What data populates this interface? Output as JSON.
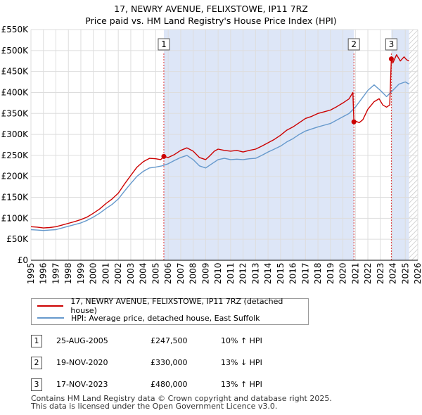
{
  "title_line1": "17, NEWRY AVENUE, FELIXSTOWE, IP11 7RZ",
  "title_line2": "Price paid vs. HM Land Registry's House Price Index (HPI)",
  "colors": {
    "property": "#cc0000",
    "hpi": "#6699cc",
    "shade": "#dde6f7",
    "marker_line": "#dd3333"
  },
  "chart_data": {
    "type": "line",
    "title": "Price paid vs. HM Land Registry's House Price Index (HPI)",
    "xlim": [
      1995,
      2026
    ],
    "ylim": [
      0,
      550000
    ],
    "x_ticks": [
      "1995",
      "1996",
      "1997",
      "1998",
      "1999",
      "2000",
      "2001",
      "2002",
      "2003",
      "2004",
      "2005",
      "2006",
      "2007",
      "2008",
      "2009",
      "2010",
      "2011",
      "2012",
      "2013",
      "2014",
      "2015",
      "2016",
      "2017",
      "2018",
      "2019",
      "2020",
      "2021",
      "2022",
      "2023",
      "2024",
      "2025",
      "2026"
    ],
    "y_ticks": [
      {
        "value": 0,
        "label": "£0"
      },
      {
        "value": 50000,
        "label": "£50K"
      },
      {
        "value": 100000,
        "label": "£100K"
      },
      {
        "value": 150000,
        "label": "£150K"
      },
      {
        "value": 200000,
        "label": "£200K"
      },
      {
        "value": 250000,
        "label": "£250K"
      },
      {
        "value": 300000,
        "label": "£300K"
      },
      {
        "value": 350000,
        "label": "£350K"
      },
      {
        "value": 400000,
        "label": "£400K"
      },
      {
        "value": 450000,
        "label": "£450K"
      },
      {
        "value": 500000,
        "label": "£500K"
      },
      {
        "value": 550000,
        "label": "£550K"
      }
    ],
    "series": [
      {
        "name": "17, NEWRY AVENUE, FELIXSTOWE, IP11 7RZ (detached house)",
        "color": "#cc0000",
        "x": [
          1995.0,
          1995.5,
          1996.0,
          1996.5,
          1997.0,
          1997.5,
          1998.0,
          1998.5,
          1999.0,
          1999.5,
          2000.0,
          2000.5,
          2001.0,
          2001.5,
          2002.0,
          2002.5,
          2003.0,
          2003.5,
          2004.0,
          2004.5,
          2005.0,
          2005.4,
          2005.65,
          2006.0,
          2006.5,
          2007.0,
          2007.5,
          2008.0,
          2008.5,
          2009.0,
          2009.3,
          2009.7,
          2010.0,
          2010.5,
          2011.0,
          2011.5,
          2012.0,
          2012.5,
          2013.0,
          2013.5,
          2014.0,
          2014.5,
          2015.0,
          2015.5,
          2016.0,
          2016.5,
          2017.0,
          2017.5,
          2018.0,
          2018.5,
          2019.0,
          2019.5,
          2020.0,
          2020.5,
          2020.8,
          2020.88,
          2021.0,
          2021.3,
          2021.6,
          2022.0,
          2022.5,
          2022.9,
          2023.2,
          2023.5,
          2023.75,
          2023.88,
          2024.0,
          2024.3,
          2024.6,
          2024.9,
          2025.1,
          2025.3
        ],
        "y": [
          80000,
          79000,
          77000,
          78000,
          80000,
          84000,
          88000,
          92000,
          97000,
          103000,
          112000,
          122000,
          135000,
          146000,
          160000,
          182000,
          202000,
          222000,
          235000,
          243000,
          242000,
          240000,
          247500,
          245000,
          252000,
          262000,
          268000,
          260000,
          245000,
          240000,
          248000,
          260000,
          265000,
          262000,
          260000,
          262000,
          258000,
          262000,
          265000,
          272000,
          280000,
          288000,
          298000,
          310000,
          318000,
          328000,
          338000,
          343000,
          350000,
          354000,
          358000,
          366000,
          375000,
          385000,
          400000,
          330000,
          332000,
          328000,
          335000,
          360000,
          378000,
          385000,
          370000,
          365000,
          370000,
          480000,
          470000,
          490000,
          475000,
          485000,
          478000,
          475000
        ]
      },
      {
        "name": "HPI: Average price, detached house, East Suffolk",
        "color": "#6699cc",
        "x": [
          1995.0,
          1995.5,
          1996.0,
          1996.5,
          1997.0,
          1997.5,
          1998.0,
          1998.5,
          1999.0,
          1999.5,
          2000.0,
          2000.5,
          2001.0,
          2001.5,
          2002.0,
          2002.5,
          2003.0,
          2003.5,
          2004.0,
          2004.5,
          2005.0,
          2005.5,
          2006.0,
          2006.5,
          2007.0,
          2007.5,
          2008.0,
          2008.5,
          2009.0,
          2009.5,
          2010.0,
          2010.5,
          2011.0,
          2011.5,
          2012.0,
          2012.5,
          2013.0,
          2013.5,
          2014.0,
          2014.5,
          2015.0,
          2015.5,
          2016.0,
          2016.5,
          2017.0,
          2017.5,
          2018.0,
          2018.5,
          2019.0,
          2019.5,
          2020.0,
          2020.5,
          2021.0,
          2021.5,
          2022.0,
          2022.5,
          2023.0,
          2023.5,
          2024.0,
          2024.5,
          2025.0,
          2025.3
        ],
        "y": [
          73000,
          72000,
          71000,
          72000,
          73000,
          77000,
          81000,
          85000,
          89000,
          95000,
          103000,
          112000,
          123000,
          133000,
          146000,
          165000,
          183000,
          200000,
          212000,
          220000,
          222000,
          225000,
          230000,
          238000,
          245000,
          250000,
          240000,
          225000,
          220000,
          230000,
          240000,
          243000,
          240000,
          241000,
          240000,
          242000,
          243000,
          250000,
          258000,
          265000,
          272000,
          282000,
          290000,
          300000,
          308000,
          313000,
          318000,
          322000,
          326000,
          334000,
          342000,
          350000,
          365000,
          385000,
          405000,
          418000,
          405000,
          390000,
          405000,
          420000,
          425000,
          420000
        ]
      }
    ],
    "sales": [
      {
        "marker": "1",
        "x": 2005.65,
        "price": 247500
      },
      {
        "marker": "2",
        "x": 2020.88,
        "price": 330000
      },
      {
        "marker": "3",
        "x": 2023.88,
        "price": 480000
      }
    ],
    "shaded_ranges": [
      [
        2005.65,
        2020.88
      ],
      [
        2023.88,
        2025.3
      ]
    ],
    "hatched_range": [
      2025.3,
      2026
    ]
  },
  "legend": {
    "property_label": "17, NEWRY AVENUE, FELIXSTOWE, IP11 7RZ (detached house)",
    "hpi_label": "HPI: Average price, detached house, East Suffolk"
  },
  "sales_table": [
    {
      "num": "1",
      "date": "25-AUG-2005",
      "price": "£247,500",
      "hpi": "10% ↑ HPI"
    },
    {
      "num": "2",
      "date": "19-NOV-2020",
      "price": "£330,000",
      "hpi": "13% ↓ HPI"
    },
    {
      "num": "3",
      "date": "17-NOV-2023",
      "price": "£480,000",
      "hpi": "13% ↑ HPI"
    }
  ],
  "footer_line1": "Contains HM Land Registry data © Crown copyright and database right 2025.",
  "footer_line2": "This data is licensed under the Open Government Licence v3.0."
}
